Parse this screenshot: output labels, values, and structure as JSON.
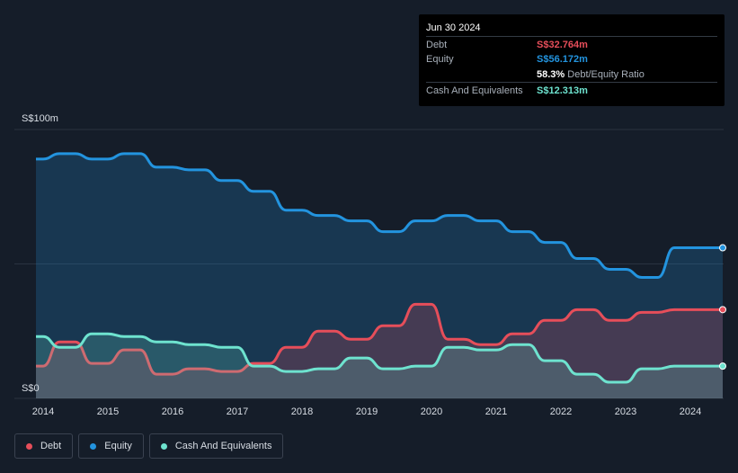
{
  "tooltip": {
    "date": "Jun 30 2024",
    "debt_label": "Debt",
    "debt_value": "S$32.764m",
    "equity_label": "Equity",
    "equity_value": "S$56.172m",
    "ratio_pct": "58.3%",
    "ratio_label": "Debt/Equity Ratio",
    "cash_label": "Cash And Equivalents",
    "cash_value": "S$12.313m"
  },
  "legend": {
    "debt": "Debt",
    "equity": "Equity",
    "cash": "Cash And Equivalents"
  },
  "colors": {
    "background": "#151d29",
    "debt": "#e64e5a",
    "equity": "#2394df",
    "cash": "#6ee3cf"
  },
  "chart_data": {
    "type": "area",
    "ylim": [
      0,
      100
    ],
    "y_tick_labels": [
      "S$0",
      "S$100m"
    ],
    "x_tick_labels": [
      "2014",
      "2015",
      "2016",
      "2017",
      "2018",
      "2019",
      "2020",
      "2021",
      "2022",
      "2023",
      "2024"
    ],
    "series": [
      {
        "name": "Equity",
        "x": [
          2013.55,
          2013.75,
          2014.0,
          2014.25,
          2014.5,
          2014.75,
          2015.0,
          2015.25,
          2015.5,
          2015.75,
          2016.0,
          2016.25,
          2016.5,
          2016.75,
          2017.0,
          2017.25,
          2017.5,
          2017.75,
          2018.0,
          2018.25,
          2018.5,
          2018.75,
          2019.0,
          2019.25,
          2019.5,
          2019.75,
          2020.0,
          2020.25,
          2020.5,
          2020.75,
          2021.0,
          2021.25,
          2021.5,
          2021.75,
          2022.0,
          2022.25,
          2022.5,
          2022.75,
          2023.0,
          2023.25,
          2023.5,
          2023.75,
          2024.0,
          2024.25,
          2024.5
        ],
        "values": [
          88,
          89,
          89,
          91,
          91,
          89,
          89,
          91,
          91,
          86,
          86,
          85,
          85,
          81,
          81,
          77,
          77,
          70,
          70,
          68,
          68,
          66,
          66,
          62,
          62,
          66,
          66,
          68,
          68,
          66,
          66,
          62,
          62,
          58,
          58,
          52,
          52,
          48,
          48,
          45,
          45,
          56,
          56,
          56,
          56
        ]
      },
      {
        "name": "Debt",
        "x": [
          2013.55,
          2013.75,
          2014.0,
          2014.25,
          2014.5,
          2014.75,
          2015.0,
          2015.25,
          2015.5,
          2015.75,
          2016.0,
          2016.25,
          2016.5,
          2016.75,
          2017.0,
          2017.25,
          2017.5,
          2017.75,
          2018.0,
          2018.25,
          2018.5,
          2018.75,
          2019.0,
          2019.25,
          2019.5,
          2019.75,
          2020.0,
          2020.25,
          2020.5,
          2020.75,
          2021.0,
          2021.25,
          2021.5,
          2021.75,
          2022.0,
          2022.25,
          2022.5,
          2022.75,
          2023.0,
          2023.25,
          2023.5,
          2023.75,
          2024.0,
          2024.25,
          2024.5
        ],
        "values": [
          15,
          12,
          12,
          21,
          21,
          13,
          13,
          18,
          18,
          9,
          9,
          11,
          11,
          10,
          10,
          13,
          13,
          19,
          19,
          25,
          25,
          22,
          22,
          27,
          27,
          35,
          35,
          22,
          22,
          20,
          20,
          24,
          24,
          29,
          29,
          33,
          33,
          29,
          29,
          32,
          32,
          33,
          33,
          33,
          33
        ]
      },
      {
        "name": "Cash And Equivalents",
        "x": [
          2013.55,
          2013.75,
          2014.0,
          2014.25,
          2014.5,
          2014.75,
          2015.0,
          2015.25,
          2015.5,
          2015.75,
          2016.0,
          2016.25,
          2016.5,
          2016.75,
          2017.0,
          2017.25,
          2017.5,
          2017.75,
          2018.0,
          2018.25,
          2018.5,
          2018.75,
          2019.0,
          2019.25,
          2019.5,
          2019.75,
          2020.0,
          2020.25,
          2020.5,
          2020.75,
          2021.0,
          2021.25,
          2021.5,
          2021.75,
          2022.0,
          2022.25,
          2022.5,
          2022.75,
          2023.0,
          2023.25,
          2023.5,
          2023.75,
          2024.0,
          2024.25,
          2024.5
        ],
        "values": [
          27,
          23,
          23,
          19,
          19,
          24,
          24,
          23,
          23,
          21,
          21,
          20,
          20,
          19,
          19,
          12,
          12,
          10,
          10,
          11,
          11,
          15,
          15,
          11,
          11,
          12,
          12,
          19,
          19,
          18,
          18,
          20,
          20,
          14,
          14,
          9,
          9,
          6,
          6,
          11,
          11,
          12,
          12,
          12,
          12
        ]
      }
    ],
    "grid": true,
    "legend_position": "bottom-left"
  }
}
